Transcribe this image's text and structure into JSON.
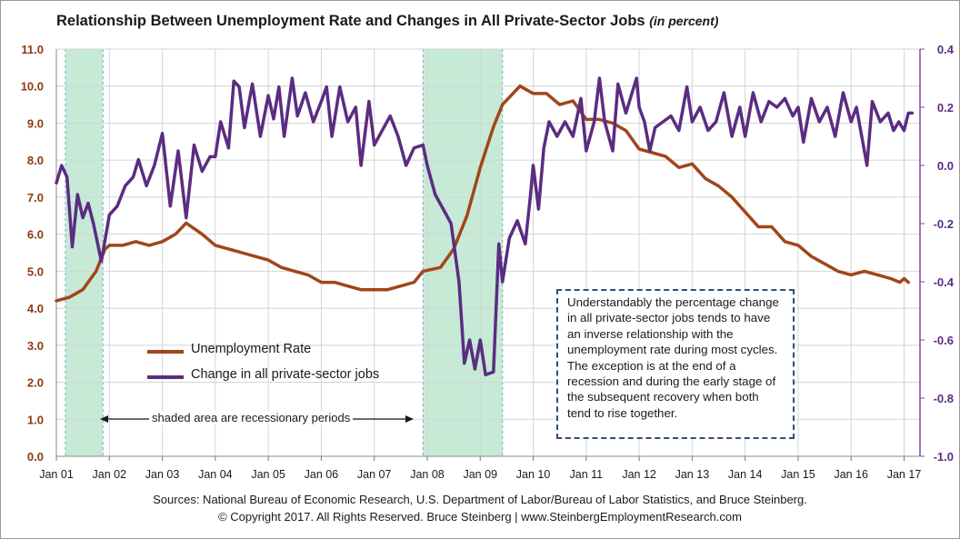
{
  "title": {
    "main": "Relationship Between Unemployment Rate and Changes in All Private-Sector Jobs",
    "units": "(in percent)"
  },
  "colors": {
    "unemployment": "#a0461a",
    "jobs": "#5b2c82",
    "recession": "#c6ead6",
    "left_axis_text": "#8b3a12",
    "right_axis_text": "#5b2c82",
    "axis_line_right": "#7a4aa8",
    "grid": "#d4d4d4"
  },
  "chart_data": {
    "type": "line",
    "xlabels": [
      "Jan 01",
      "Jan 02",
      "Jan 03",
      "Jan 04",
      "Jan 05",
      "Jan 06",
      "Jan 07",
      "Jan 08",
      "Jan 09",
      "Jan 10",
      "Jan 11",
      "Jan 12",
      "Jan 13",
      "Jan 14",
      "Jan 15",
      "Jan 16",
      "Jan 17"
    ],
    "x_range": [
      2001.0,
      2017.3
    ],
    "y_left": {
      "ylim": [
        0,
        11
      ],
      "ticks": [
        "0.0",
        "1.0",
        "2.0",
        "3.0",
        "4.0",
        "5.0",
        "6.0",
        "7.0",
        "8.0",
        "9.0",
        "10.0",
        "11.0"
      ]
    },
    "y_right": {
      "ylim": [
        -1.0,
        0.4
      ],
      "ticks": [
        "-1.0",
        "-0.8",
        "-0.6",
        "-0.4",
        "-0.2",
        "0.0",
        "0.2",
        "0.4"
      ]
    },
    "recessions": [
      [
        2001.17,
        2001.88
      ],
      [
        2007.92,
        2009.42
      ]
    ],
    "grid": true,
    "legend_position": "lower-left",
    "series": [
      {
        "name": "Unemployment Rate",
        "axis": "left",
        "points": [
          [
            2001.0,
            4.2
          ],
          [
            2001.25,
            4.3
          ],
          [
            2001.5,
            4.5
          ],
          [
            2001.75,
            5.0
          ],
          [
            2001.92,
            5.6
          ],
          [
            2002.0,
            5.7
          ],
          [
            2002.25,
            5.7
          ],
          [
            2002.5,
            5.8
          ],
          [
            2002.75,
            5.7
          ],
          [
            2003.0,
            5.8
          ],
          [
            2003.25,
            6.0
          ],
          [
            2003.45,
            6.3
          ],
          [
            2003.75,
            6.0
          ],
          [
            2004.0,
            5.7
          ],
          [
            2004.25,
            5.6
          ],
          [
            2004.5,
            5.5
          ],
          [
            2004.75,
            5.4
          ],
          [
            2005.0,
            5.3
          ],
          [
            2005.25,
            5.1
          ],
          [
            2005.5,
            5.0
          ],
          [
            2005.75,
            4.9
          ],
          [
            2006.0,
            4.7
          ],
          [
            2006.25,
            4.7
          ],
          [
            2006.5,
            4.6
          ],
          [
            2006.75,
            4.5
          ],
          [
            2007.0,
            4.5
          ],
          [
            2007.25,
            4.5
          ],
          [
            2007.5,
            4.6
          ],
          [
            2007.75,
            4.7
          ],
          [
            2007.92,
            5.0
          ],
          [
            2008.25,
            5.1
          ],
          [
            2008.5,
            5.6
          ],
          [
            2008.75,
            6.5
          ],
          [
            2009.0,
            7.8
          ],
          [
            2009.25,
            8.9
          ],
          [
            2009.42,
            9.5
          ],
          [
            2009.75,
            10.0
          ],
          [
            2010.0,
            9.8
          ],
          [
            2010.25,
            9.8
          ],
          [
            2010.5,
            9.5
          ],
          [
            2010.75,
            9.6
          ],
          [
            2011.0,
            9.1
          ],
          [
            2011.25,
            9.1
          ],
          [
            2011.5,
            9.0
          ],
          [
            2011.75,
            8.8
          ],
          [
            2012.0,
            8.3
          ],
          [
            2012.25,
            8.2
          ],
          [
            2012.5,
            8.1
          ],
          [
            2012.75,
            7.8
          ],
          [
            2013.0,
            7.9
          ],
          [
            2013.25,
            7.5
          ],
          [
            2013.5,
            7.3
          ],
          [
            2013.75,
            7.0
          ],
          [
            2014.0,
            6.6
          ],
          [
            2014.25,
            6.2
          ],
          [
            2014.5,
            6.2
          ],
          [
            2014.75,
            5.8
          ],
          [
            2015.0,
            5.7
          ],
          [
            2015.25,
            5.4
          ],
          [
            2015.5,
            5.2
          ],
          [
            2015.75,
            5.0
          ],
          [
            2016.0,
            4.9
          ],
          [
            2016.25,
            5.0
          ],
          [
            2016.5,
            4.9
          ],
          [
            2016.75,
            4.8
          ],
          [
            2016.92,
            4.7
          ],
          [
            2017.0,
            4.8
          ],
          [
            2017.08,
            4.7
          ]
        ]
      },
      {
        "name": "Change in all private-sector jobs",
        "axis": "right",
        "points": [
          [
            2001.0,
            -0.06
          ],
          [
            2001.1,
            0.0
          ],
          [
            2001.2,
            -0.04
          ],
          [
            2001.3,
            -0.28
          ],
          [
            2001.4,
            -0.1
          ],
          [
            2001.5,
            -0.18
          ],
          [
            2001.6,
            -0.13
          ],
          [
            2001.7,
            -0.2
          ],
          [
            2001.85,
            -0.33
          ],
          [
            2002.0,
            -0.17
          ],
          [
            2002.15,
            -0.14
          ],
          [
            2002.3,
            -0.07
          ],
          [
            2002.45,
            -0.04
          ],
          [
            2002.55,
            0.02
          ],
          [
            2002.7,
            -0.07
          ],
          [
            2002.85,
            0.0
          ],
          [
            2003.0,
            0.11
          ],
          [
            2003.15,
            -0.14
          ],
          [
            2003.3,
            0.05
          ],
          [
            2003.45,
            -0.18
          ],
          [
            2003.6,
            0.07
          ],
          [
            2003.75,
            -0.02
          ],
          [
            2003.9,
            0.03
          ],
          [
            2004.0,
            0.03
          ],
          [
            2004.1,
            0.15
          ],
          [
            2004.25,
            0.06
          ],
          [
            2004.35,
            0.29
          ],
          [
            2004.45,
            0.27
          ],
          [
            2004.55,
            0.13
          ],
          [
            2004.7,
            0.28
          ],
          [
            2004.85,
            0.1
          ],
          [
            2005.0,
            0.24
          ],
          [
            2005.1,
            0.16
          ],
          [
            2005.2,
            0.27
          ],
          [
            2005.3,
            0.1
          ],
          [
            2005.45,
            0.3
          ],
          [
            2005.55,
            0.17
          ],
          [
            2005.7,
            0.25
          ],
          [
            2005.85,
            0.15
          ],
          [
            2006.0,
            0.22
          ],
          [
            2006.1,
            0.27
          ],
          [
            2006.2,
            0.1
          ],
          [
            2006.35,
            0.27
          ],
          [
            2006.5,
            0.15
          ],
          [
            2006.65,
            0.2
          ],
          [
            2006.75,
            0.0
          ],
          [
            2006.9,
            0.22
          ],
          [
            2007.0,
            0.07
          ],
          [
            2007.15,
            0.12
          ],
          [
            2007.3,
            0.17
          ],
          [
            2007.45,
            0.1
          ],
          [
            2007.6,
            0.0
          ],
          [
            2007.75,
            0.06
          ],
          [
            2007.92,
            0.07
          ],
          [
            2008.0,
            0.0
          ],
          [
            2008.15,
            -0.1
          ],
          [
            2008.3,
            -0.15
          ],
          [
            2008.45,
            -0.2
          ],
          [
            2008.6,
            -0.4
          ],
          [
            2008.7,
            -0.68
          ],
          [
            2008.8,
            -0.6
          ],
          [
            2008.9,
            -0.7
          ],
          [
            2009.0,
            -0.6
          ],
          [
            2009.1,
            -0.72
          ],
          [
            2009.25,
            -0.71
          ],
          [
            2009.35,
            -0.27
          ],
          [
            2009.42,
            -0.4
          ],
          [
            2009.55,
            -0.25
          ],
          [
            2009.7,
            -0.19
          ],
          [
            2009.85,
            -0.27
          ],
          [
            2009.95,
            -0.1
          ],
          [
            2010.0,
            0.0
          ],
          [
            2010.1,
            -0.15
          ],
          [
            2010.2,
            0.06
          ],
          [
            2010.3,
            0.15
          ],
          [
            2010.45,
            0.1
          ],
          [
            2010.6,
            0.15
          ],
          [
            2010.75,
            0.1
          ],
          [
            2010.9,
            0.23
          ],
          [
            2011.0,
            0.05
          ],
          [
            2011.15,
            0.15
          ],
          [
            2011.25,
            0.3
          ],
          [
            2011.35,
            0.15
          ],
          [
            2011.5,
            0.05
          ],
          [
            2011.6,
            0.28
          ],
          [
            2011.75,
            0.18
          ],
          [
            2011.95,
            0.3
          ],
          [
            2012.0,
            0.2
          ],
          [
            2012.1,
            0.15
          ],
          [
            2012.2,
            0.05
          ],
          [
            2012.3,
            0.13
          ],
          [
            2012.45,
            0.15
          ],
          [
            2012.6,
            0.17
          ],
          [
            2012.75,
            0.12
          ],
          [
            2012.9,
            0.27
          ],
          [
            2013.0,
            0.15
          ],
          [
            2013.15,
            0.2
          ],
          [
            2013.3,
            0.12
          ],
          [
            2013.45,
            0.15
          ],
          [
            2013.6,
            0.25
          ],
          [
            2013.75,
            0.1
          ],
          [
            2013.9,
            0.2
          ],
          [
            2014.0,
            0.1
          ],
          [
            2014.15,
            0.25
          ],
          [
            2014.3,
            0.15
          ],
          [
            2014.45,
            0.22
          ],
          [
            2014.6,
            0.2
          ],
          [
            2014.75,
            0.23
          ],
          [
            2014.9,
            0.17
          ],
          [
            2015.0,
            0.2
          ],
          [
            2015.1,
            0.08
          ],
          [
            2015.25,
            0.23
          ],
          [
            2015.4,
            0.15
          ],
          [
            2015.55,
            0.2
          ],
          [
            2015.7,
            0.1
          ],
          [
            2015.85,
            0.25
          ],
          [
            2016.0,
            0.15
          ],
          [
            2016.1,
            0.2
          ],
          [
            2016.2,
            0.1
          ],
          [
            2016.3,
            0.0
          ],
          [
            2016.4,
            0.22
          ],
          [
            2016.55,
            0.15
          ],
          [
            2016.7,
            0.18
          ],
          [
            2016.8,
            0.12
          ],
          [
            2016.9,
            0.15
          ],
          [
            2017.0,
            0.12
          ],
          [
            2017.08,
            0.18
          ],
          [
            2017.15,
            0.18
          ]
        ]
      }
    ]
  },
  "legend": {
    "unemployment_label": "Unemployment Rate",
    "jobs_label": "Change in all private-sector jobs"
  },
  "recession_note": "shaded area are recessionary periods",
  "annotation": "Understandably the percentage change in all private-sector jobs tends to have an inverse relationship with the unemployment rate during most cycles. The exception is at the end of a recession and during the early stage of the subsequent recovery when both tend to rise together.",
  "footer": {
    "sources": "Sources: National Bureau of Economic Research, U.S. Department of Labor/Bureau of Labor Statistics, and Bruce Steinberg.",
    "copyright": "© Copyright 2017. All Rights Reserved. Bruce Steinberg | www.SteinbergEmploymentResearch.com"
  }
}
